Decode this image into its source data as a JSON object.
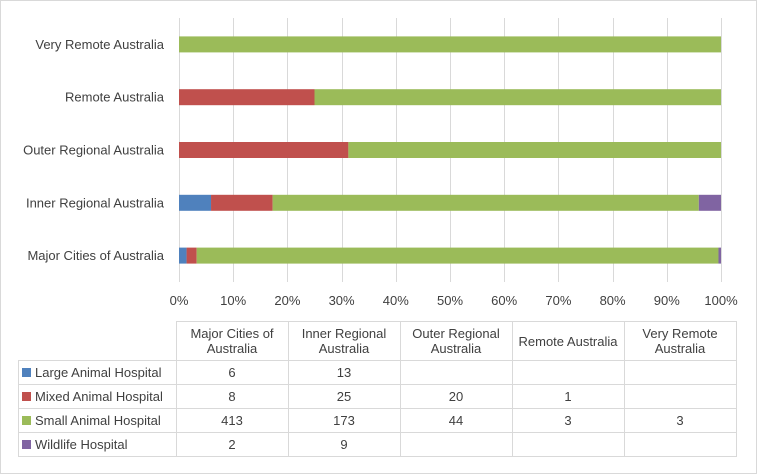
{
  "chart_data": {
    "type": "bar",
    "orientation": "horizontal",
    "stacked": "percent",
    "categories": [
      "Major Cities of Australia",
      "Inner Regional Australia",
      "Outer Regional Australia",
      "Remote Australia",
      "Very Remote Australia"
    ],
    "series": [
      {
        "name": "Large Animal Hospital",
        "color": "#4f81bd",
        "values": [
          6,
          13,
          null,
          null,
          null
        ]
      },
      {
        "name": "Mixed Animal Hospital",
        "color": "#c0504d",
        "values": [
          8,
          25,
          20,
          1,
          null
        ]
      },
      {
        "name": "Small Animal Hospital",
        "color": "#9bbb59",
        "values": [
          413,
          173,
          44,
          3,
          3
        ]
      },
      {
        "name": "Wildlife Hospital",
        "color": "#8064a2",
        "values": [
          2,
          9,
          null,
          null,
          null
        ]
      }
    ],
    "xlim": [
      0,
      100
    ],
    "xticks": [
      "0%",
      "10%",
      "20%",
      "30%",
      "40%",
      "50%",
      "60%",
      "70%",
      "80%",
      "90%",
      "100%"
    ],
    "grid": "vertical",
    "legend": "data-table"
  },
  "table": {
    "columns": [
      "Major Cities of Australia",
      "Inner Regional Australia",
      "Outer Regional Australia",
      "Remote Australia",
      "Very Remote Australia"
    ]
  }
}
